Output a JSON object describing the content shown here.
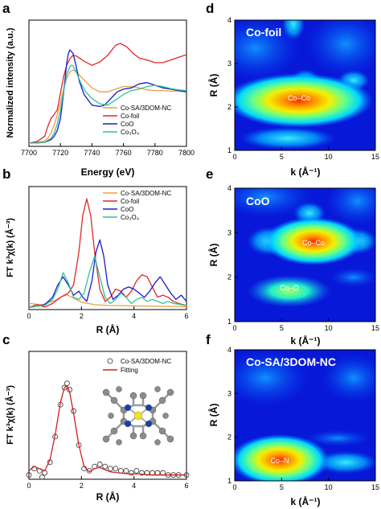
{
  "panels": {
    "a": {
      "letter": "a",
      "ylabel": "Normalized intensity (a.u.)",
      "xlabel": "Energy (eV)"
    },
    "b": {
      "letter": "b",
      "ylabel": "FT k³χ(k) (Å⁻³)",
      "xlabel": "R (Å)"
    },
    "c": {
      "letter": "c",
      "ylabel": "FT k³χ(k) (Å⁻³)",
      "xlabel": "R (Å)"
    },
    "d": {
      "letter": "d",
      "title": "Co-foil",
      "ylabel": "R (Å)",
      "xlabel": "k (Å⁻¹)",
      "peaks": [
        "Co–Co"
      ]
    },
    "e": {
      "letter": "e",
      "title": "CoO",
      "ylabel": "R (Å)",
      "xlabel": "k (Å⁻¹)",
      "peaks": [
        "Co–Co",
        "Co–O"
      ]
    },
    "f": {
      "letter": "f",
      "title": "Co-SA/3DOM-NC",
      "ylabel": "R (Å)",
      "xlabel": "k (Å⁻¹)",
      "peaks": [
        "Co–N"
      ]
    }
  },
  "colors": {
    "sa": "#E8A040",
    "foil": "#E0282C",
    "coo": "#1A1ACC",
    "co3o4": "#2EC29A",
    "fit": "#D42020"
  },
  "chart_data": [
    {
      "id": "a",
      "type": "line",
      "xlabel": "Energy (eV)",
      "ylabel": "Normalized intensity (a.u.)",
      "xlim": [
        7700,
        7800
      ],
      "ylim": [
        0,
        1.9
      ],
      "xticks": [
        7700,
        7720,
        7740,
        7760,
        7780,
        7800
      ],
      "legend": "bottom-right",
      "series": [
        {
          "name": "Co-SA/3DOM-NC",
          "color": "#E8A040",
          "x": [
            7700,
            7705,
            7710,
            7712,
            7714,
            7716,
            7718,
            7720,
            7722,
            7724,
            7726,
            7728,
            7730,
            7735,
            7740,
            7745,
            7750,
            7755,
            7760,
            7765,
            7770,
            7775,
            7780,
            7785,
            7790,
            7795,
            7800
          ],
          "y": [
            0.05,
            0.06,
            0.08,
            0.12,
            0.2,
            0.32,
            0.48,
            0.66,
            0.86,
            1.02,
            1.12,
            1.15,
            1.12,
            1.0,
            0.88,
            0.82,
            0.82,
            0.86,
            0.9,
            0.9,
            0.88,
            0.85,
            0.84,
            0.84,
            0.83,
            0.83,
            0.82
          ]
        },
        {
          "name": "Co-foil",
          "color": "#E0282C",
          "x": [
            7700,
            7705,
            7710,
            7712,
            7714,
            7716,
            7718,
            7720,
            7722,
            7724,
            7726,
            7728,
            7730,
            7735,
            7740,
            7745,
            7750,
            7755,
            7758,
            7762,
            7766,
            7770,
            7775,
            7780,
            7785,
            7790,
            7795,
            7800
          ],
          "y": [
            0.05,
            0.07,
            0.15,
            0.3,
            0.42,
            0.48,
            0.55,
            0.8,
            1.05,
            1.22,
            1.32,
            1.37,
            1.36,
            1.28,
            1.22,
            1.27,
            1.37,
            1.52,
            1.55,
            1.5,
            1.4,
            1.33,
            1.3,
            1.26,
            1.26,
            1.3,
            1.34,
            1.38
          ]
        },
        {
          "name": "CoO",
          "color": "#1A1ACC",
          "x": [
            7700,
            7705,
            7710,
            7714,
            7716,
            7718,
            7720,
            7722,
            7724,
            7725,
            7726,
            7728,
            7730,
            7732,
            7735,
            7740,
            7745,
            7748,
            7752,
            7756,
            7760,
            7765,
            7770,
            7775,
            7780,
            7785,
            7790,
            7795,
            7800
          ],
          "y": [
            0.05,
            0.05,
            0.06,
            0.1,
            0.15,
            0.24,
            0.42,
            0.8,
            1.25,
            1.4,
            1.45,
            1.4,
            1.2,
            0.98,
            0.78,
            0.62,
            0.6,
            0.62,
            0.72,
            0.82,
            0.86,
            0.88,
            0.94,
            0.96,
            0.92,
            0.88,
            0.86,
            0.84,
            0.82
          ]
        },
        {
          "name": "Co₃O₄",
          "color": "#2EC29A",
          "x": [
            7700,
            7705,
            7710,
            7714,
            7716,
            7718,
            7720,
            7722,
            7724,
            7726,
            7727,
            7728,
            7730,
            7733,
            7736,
            7740,
            7745,
            7750,
            7755,
            7760,
            7765,
            7770,
            7775,
            7780,
            7785,
            7790,
            7795,
            7800
          ],
          "y": [
            0.05,
            0.05,
            0.06,
            0.12,
            0.2,
            0.34,
            0.55,
            0.82,
            1.08,
            1.2,
            1.22,
            1.21,
            1.12,
            0.95,
            0.82,
            0.72,
            0.64,
            0.62,
            0.7,
            0.78,
            0.84,
            0.86,
            0.9,
            0.92,
            0.9,
            0.87,
            0.85,
            0.84
          ]
        }
      ]
    },
    {
      "id": "b",
      "type": "line",
      "xlabel": "R (Å)",
      "ylabel": "FT k³χ(k) (Å⁻³)",
      "xlim": [
        0,
        6
      ],
      "ylim": [
        0,
        30
      ],
      "xticks": [
        0,
        2,
        4,
        6
      ],
      "legend": "top-right",
      "series": [
        {
          "name": "Co-SA/3DOM-NC",
          "color": "#E8A040",
          "x": [
            0,
            0.5,
            1.0,
            1.2,
            1.45,
            1.7,
            2.0,
            2.5,
            3,
            4,
            5,
            6
          ],
          "y": [
            1.5,
            1.2,
            2.2,
            3.0,
            3.6,
            2.8,
            1.8,
            1.2,
            1.0,
            0.9,
            0.8,
            0.7
          ]
        },
        {
          "name": "Co-foil",
          "color": "#E0282C",
          "x": [
            0,
            0.3,
            0.6,
            0.9,
            1.2,
            1.5,
            1.7,
            1.9,
            2.05,
            2.2,
            2.35,
            2.5,
            2.7,
            2.9,
            3.1,
            3.3,
            3.5,
            3.7,
            3.9,
            4.1,
            4.3,
            4.5,
            4.7,
            4.9,
            5.1,
            5.3,
            5.5,
            5.7,
            6.0
          ],
          "y": [
            0.5,
            1.2,
            0.6,
            1.5,
            3.0,
            4.0,
            6.0,
            14.0,
            23.0,
            27.0,
            23.0,
            14.0,
            5.0,
            2.0,
            3.0,
            5.0,
            4.5,
            3.0,
            4.5,
            7.0,
            8.5,
            8.0,
            5.5,
            3.0,
            3.5,
            3.0,
            2.0,
            1.5,
            1.0
          ]
        },
        {
          "name": "CoO",
          "color": "#1A1ACC",
          "x": [
            0,
            0.3,
            0.6,
            0.9,
            1.1,
            1.3,
            1.5,
            1.7,
            1.9,
            2.05,
            2.2,
            2.4,
            2.55,
            2.7,
            2.85,
            3.0,
            3.2,
            3.4,
            3.6,
            3.8,
            4.0,
            4.2,
            4.4,
            4.6,
            4.8,
            5.0,
            5.2,
            5.4,
            5.6,
            5.8,
            6.0
          ],
          "y": [
            0.5,
            0.8,
            1.2,
            3.0,
            6.0,
            8.0,
            6.0,
            3.5,
            4.5,
            3.0,
            2.0,
            7.0,
            14.0,
            17.0,
            13.0,
            6.0,
            2.5,
            3.5,
            5.0,
            5.5,
            5.0,
            4.0,
            3.0,
            4.5,
            6.5,
            8.0,
            6.0,
            4.0,
            2.5,
            3.5,
            2.0
          ]
        },
        {
          "name": "Co₃O₄",
          "color": "#2EC29A",
          "x": [
            0,
            0.3,
            0.6,
            0.9,
            1.1,
            1.3,
            1.5,
            1.7,
            1.9,
            2.1,
            2.3,
            2.5,
            2.7,
            2.9,
            3.1,
            3.3,
            3.5,
            3.7,
            3.9,
            4.1,
            4.3,
            4.5,
            4.7,
            4.9,
            5.1,
            5.3,
            5.5,
            5.8,
            6.0
          ],
          "y": [
            0.5,
            0.8,
            1.0,
            2.5,
            5.0,
            9.0,
            6.5,
            3.0,
            2.5,
            4.0,
            9.0,
            13.0,
            8.0,
            3.0,
            1.5,
            2.5,
            4.0,
            3.0,
            1.5,
            2.5,
            3.0,
            2.0,
            2.5,
            2.0,
            1.5,
            2.0,
            1.5,
            1.2,
            1.0
          ]
        }
      ]
    },
    {
      "id": "c",
      "type": "line",
      "xlabel": "R (Å)",
      "ylabel": "FT k³χ(k) (Å⁻³)",
      "xlim": [
        0,
        6
      ],
      "ylim": [
        0,
        6
      ],
      "xticks": [
        0,
        2,
        4,
        6
      ],
      "legend": "top-right",
      "series": [
        {
          "name": "Co-SA/3DOM-NC",
          "style": "open-circles",
          "color": "#333333",
          "x": [
            0,
            0.2,
            0.4,
            0.5,
            0.6,
            0.8,
            1.0,
            1.2,
            1.35,
            1.45,
            1.55,
            1.7,
            1.9,
            2.1,
            2.3,
            2.5,
            2.7,
            2.9,
            3.1,
            3.3,
            3.5,
            3.7,
            3.9,
            4.1,
            4.3,
            4.5,
            4.7,
            4.9,
            5.1,
            5.3,
            5.5,
            5.7,
            6.0
          ],
          "y": [
            0.2,
            0.5,
            0.4,
            0.1,
            0.3,
            0.8,
            2.0,
            3.5,
            4.3,
            4.5,
            4.2,
            3.2,
            1.6,
            0.5,
            0.4,
            0.6,
            0.7,
            0.6,
            0.5,
            0.5,
            0.4,
            0.4,
            0.3,
            0.4,
            0.3,
            0.3,
            0.3,
            0.3,
            0.3,
            0.2,
            0.2,
            0.2,
            0.2
          ]
        },
        {
          "name": "Fitting",
          "color": "#D42020",
          "x": [
            0,
            0.2,
            0.4,
            0.6,
            0.8,
            1.0,
            1.2,
            1.35,
            1.45,
            1.55,
            1.7,
            1.9,
            2.1,
            2.3,
            2.5,
            2.7,
            2.9,
            3.1,
            3.4,
            3.8,
            4.2,
            4.6,
            5.0,
            5.5,
            6.0
          ],
          "y": [
            0.4,
            0.6,
            0.5,
            0.4,
            0.9,
            2.1,
            3.6,
            4.3,
            4.4,
            4.1,
            3.1,
            1.6,
            0.6,
            0.35,
            0.5,
            0.55,
            0.45,
            0.35,
            0.3,
            0.25,
            0.25,
            0.2,
            0.2,
            0.2,
            0.2
          ]
        }
      ]
    },
    {
      "id": "d",
      "type": "heatmap",
      "xlabel": "k (Å⁻¹)",
      "ylabel": "R (Å)",
      "xlim": [
        0,
        15
      ],
      "ylim": [
        1,
        4
      ],
      "xticks": [
        0,
        5,
        10,
        15
      ],
      "yticks": [
        1,
        2,
        3,
        4
      ],
      "annotations": [
        {
          "text": "Co–Co",
          "k": 7.8,
          "R": 2.2
        }
      ]
    },
    {
      "id": "e",
      "type": "heatmap",
      "xlabel": "k (Å⁻¹)",
      "ylabel": "R (Å)",
      "xlim": [
        0,
        15
      ],
      "ylim": [
        1,
        4
      ],
      "xticks": [
        0,
        5,
        10,
        15
      ],
      "yticks": [
        1,
        2,
        3,
        4
      ],
      "annotations": [
        {
          "text": "Co–Co",
          "k": 7.6,
          "R": 2.75
        },
        {
          "text": "Co–O",
          "k": 4.2,
          "R": 1.6
        }
      ]
    },
    {
      "id": "f",
      "type": "heatmap",
      "xlabel": "k (Å⁻¹)",
      "ylabel": "R (Å)",
      "xlim": [
        0,
        15
      ],
      "ylim": [
        1,
        4
      ],
      "xticks": [
        0,
        5,
        10,
        15
      ],
      "yticks": [
        1,
        2,
        3,
        4
      ],
      "annotations": [
        {
          "text": "Co–N",
          "k": 3.8,
          "R": 1.45
        }
      ]
    }
  ]
}
